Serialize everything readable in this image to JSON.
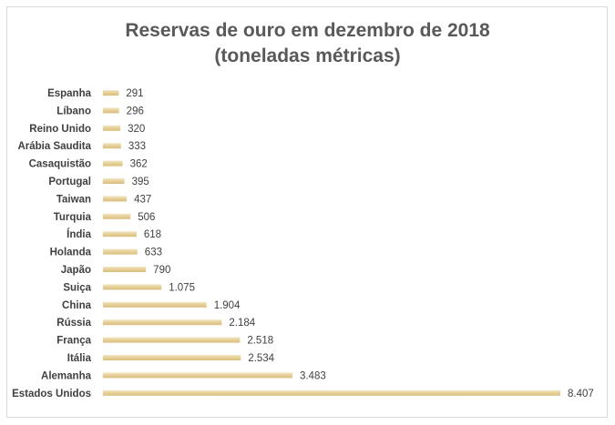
{
  "chart_data": {
    "type": "bar",
    "orientation": "horizontal",
    "title": [
      "Reservas de ouro em dezembro de 2018",
      "(toneladas métricas)"
    ],
    "categories": [
      "Espanha",
      "Líbano",
      "Reino Unido",
      "Arábia Saudita",
      "Casaquistão",
      "Portugal",
      "Taiwan",
      "Turquia",
      "Índia",
      "Holanda",
      "Japão",
      "Suiça",
      "China",
      "Rússia",
      "França",
      "Itália",
      "Alemanha",
      "Estados Unidos"
    ],
    "values": [
      291,
      296,
      320,
      333,
      362,
      395,
      437,
      506,
      618,
      633,
      790,
      1075,
      1904,
      2184,
      2518,
      2534,
      3483,
      8407
    ],
    "value_labels": [
      "291",
      "296",
      "320",
      "333",
      "362",
      "395",
      "437",
      "506",
      "618",
      "633",
      "790",
      "1.075",
      "1.904",
      "2.184",
      "2.518",
      "2.534",
      "3.483",
      "8.407"
    ],
    "xlim": [
      0,
      8407
    ],
    "xlabel": "",
    "ylabel": "",
    "grid": false,
    "legend": "none",
    "bar_color": "#e8d3a1",
    "bar_color_dark": "#d8ba78"
  }
}
